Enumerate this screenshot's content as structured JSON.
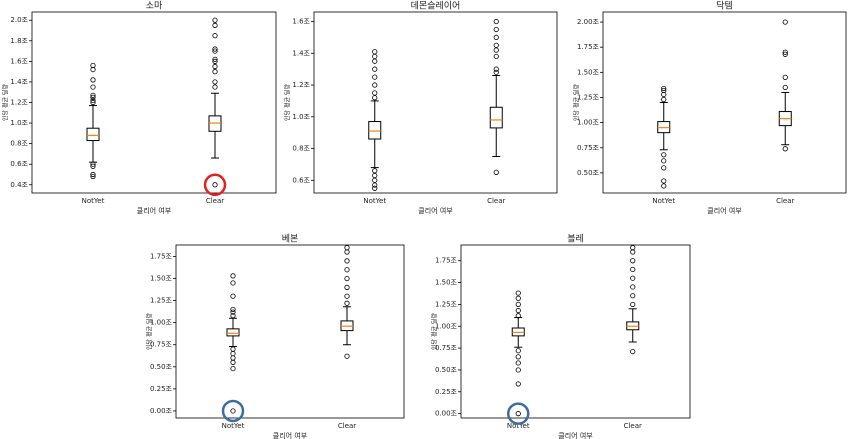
{
  "chart_data": [
    {
      "type": "box",
      "title": "소마",
      "xlabel": "클리어 여부",
      "ylabel": "인당 평균 딜량",
      "categories": [
        "NotYet",
        "Clear"
      ],
      "boxes": [
        {
          "low": 0.62,
          "q1": 0.83,
          "median": 0.88,
          "q3": 0.95,
          "high": 1.17,
          "outliers": [
            0.6,
            0.58,
            0.5,
            0.48,
            1.2,
            1.22,
            1.25,
            1.27,
            1.35,
            1.42,
            1.52,
            1.56
          ]
        },
        {
          "low": 0.66,
          "q1": 0.92,
          "median": 1.0,
          "q3": 1.07,
          "high": 1.29,
          "outliers": [
            0.4,
            1.35,
            1.4,
            1.5,
            1.55,
            1.6,
            1.62,
            1.7,
            1.72,
            1.85,
            1.95,
            2.0
          ]
        }
      ],
      "ylim": [
        0.32,
        2.08
      ],
      "yticks": [
        {
          "value": 0.4,
          "label": "0.4조"
        },
        {
          "value": 0.6,
          "label": "0.6조"
        },
        {
          "value": 0.8,
          "label": "0.8조"
        },
        {
          "value": 1.0,
          "label": "1.0조"
        },
        {
          "value": 1.2,
          "label": "1.2조"
        },
        {
          "value": 1.4,
          "label": "1.4조"
        },
        {
          "value": 1.6,
          "label": "1.6조"
        },
        {
          "value": 1.8,
          "label": "1.8조"
        },
        {
          "value": 2.0,
          "label": "2.0조"
        }
      ],
      "box_color": "#000000",
      "median_color": "#ff7f0e"
    },
    {
      "type": "box",
      "title": "데몬슬레이어",
      "xlabel": "클리어 여부",
      "ylabel": "인당 평균 딜량",
      "categories": [
        "NotYet",
        "Clear"
      ],
      "boxes": [
        {
          "low": 0.68,
          "q1": 0.86,
          "median": 0.91,
          "q3": 0.97,
          "high": 1.1,
          "outliers": [
            0.55,
            0.57,
            0.6,
            0.63,
            0.66,
            1.12,
            1.15,
            1.2,
            1.25,
            1.3,
            1.35,
            1.38,
            1.41
          ]
        },
        {
          "low": 0.75,
          "q1": 0.93,
          "median": 0.98,
          "q3": 1.06,
          "high": 1.26,
          "outliers": [
            0.65,
            1.28,
            1.3,
            1.38,
            1.42,
            1.45,
            1.5,
            1.55,
            1.6
          ]
        }
      ],
      "ylim": [
        0.52,
        1.66
      ],
      "yticks": [
        {
          "value": 0.6,
          "label": "0.6조"
        },
        {
          "value": 0.8,
          "label": "0.8조"
        },
        {
          "value": 1.0,
          "label": "1.0조"
        },
        {
          "value": 1.2,
          "label": "1.2조"
        },
        {
          "value": 1.4,
          "label": "1.4조"
        },
        {
          "value": 1.6,
          "label": "1.6조"
        }
      ],
      "box_color": "#000000",
      "median_color": "#ff7f0e"
    },
    {
      "type": "box",
      "title": "닥템",
      "xlabel": "클리어 여부",
      "ylabel": "인당 평균 딜량",
      "categories": [
        "NotYet",
        "Clear"
      ],
      "boxes": [
        {
          "low": 0.73,
          "q1": 0.9,
          "median": 0.95,
          "q3": 1.01,
          "high": 1.2,
          "outliers": [
            0.68,
            0.62,
            0.55,
            0.42,
            0.37,
            1.23,
            1.28,
            1.32,
            1.34
          ]
        },
        {
          "low": 0.78,
          "q1": 0.97,
          "median": 1.04,
          "q3": 1.11,
          "high": 1.3,
          "outliers": [
            0.74,
            1.35,
            1.45,
            1.68,
            1.7,
            2.0
          ]
        }
      ],
      "ylim": [
        0.3,
        2.1
      ],
      "yticks": [
        {
          "value": 0.5,
          "label": "0.50조"
        },
        {
          "value": 0.75,
          "label": "0.75조"
        },
        {
          "value": 1.0,
          "label": "1.00조"
        },
        {
          "value": 1.25,
          "label": "1.25조"
        },
        {
          "value": 1.5,
          "label": "1.50조"
        },
        {
          "value": 1.75,
          "label": "1.75조"
        },
        {
          "value": 2.0,
          "label": "2.00조"
        }
      ],
      "box_color": "#000000",
      "median_color": "#ff7f0e"
    },
    {
      "type": "box",
      "title": "베본",
      "xlabel": "클리어 여부",
      "ylabel": "인당 평균 딜량",
      "categories": [
        "NotYet",
        "Clear"
      ],
      "boxes": [
        {
          "low": 0.73,
          "q1": 0.85,
          "median": 0.88,
          "q3": 0.93,
          "high": 1.05,
          "outliers": [
            0.0,
            0.48,
            0.55,
            0.6,
            0.65,
            0.7,
            1.08,
            1.12,
            1.15,
            1.3,
            1.45,
            1.53
          ]
        },
        {
          "low": 0.75,
          "q1": 0.91,
          "median": 0.96,
          "q3": 1.02,
          "high": 1.18,
          "outliers": [
            0.62,
            1.22,
            1.3,
            1.4,
            1.5,
            1.6,
            1.7,
            1.8,
            1.85
          ]
        }
      ],
      "ylim": [
        -0.08,
        1.88
      ],
      "yticks": [
        {
          "value": 0.0,
          "label": "0.00조"
        },
        {
          "value": 0.25,
          "label": "0.25조"
        },
        {
          "value": 0.5,
          "label": "0.50조"
        },
        {
          "value": 0.75,
          "label": "0.75조"
        },
        {
          "value": 1.0,
          "label": "1.00조"
        },
        {
          "value": 1.25,
          "label": "1.25조"
        },
        {
          "value": 1.5,
          "label": "1.50조"
        },
        {
          "value": 1.75,
          "label": "1.75조"
        }
      ],
      "box_color": "#000000",
      "median_color": "#ff7f0e"
    },
    {
      "type": "box",
      "title": "블레",
      "xlabel": "클리어 여부",
      "ylabel": "인당 평균 딜량",
      "categories": [
        "NotYet",
        "Clear"
      ],
      "boxes": [
        {
          "low": 0.76,
          "q1": 0.89,
          "median": 0.93,
          "q3": 0.98,
          "high": 1.1,
          "outliers": [
            0.0,
            0.34,
            0.5,
            0.58,
            0.65,
            0.72,
            1.12,
            1.18,
            1.25,
            1.32,
            1.38
          ]
        },
        {
          "low": 0.82,
          "q1": 0.96,
          "median": 1.0,
          "q3": 1.05,
          "high": 1.2,
          "outliers": [
            0.71,
            1.25,
            1.35,
            1.45,
            1.55,
            1.65,
            1.75,
            1.85,
            1.9
          ]
        }
      ],
      "ylim": [
        -0.05,
        1.93
      ],
      "yticks": [
        {
          "value": 0.0,
          "label": "0.00조"
        },
        {
          "value": 0.25,
          "label": "0.25조"
        },
        {
          "value": 0.5,
          "label": "0.50조"
        },
        {
          "value": 0.75,
          "label": "0.75조"
        },
        {
          "value": 1.0,
          "label": "1.00조"
        },
        {
          "value": 1.25,
          "label": "1.25조"
        },
        {
          "value": 1.5,
          "label": "1.50조"
        },
        {
          "value": 1.75,
          "label": "1.75조"
        }
      ],
      "box_color": "#000000",
      "median_color": "#ff7f0e"
    }
  ]
}
